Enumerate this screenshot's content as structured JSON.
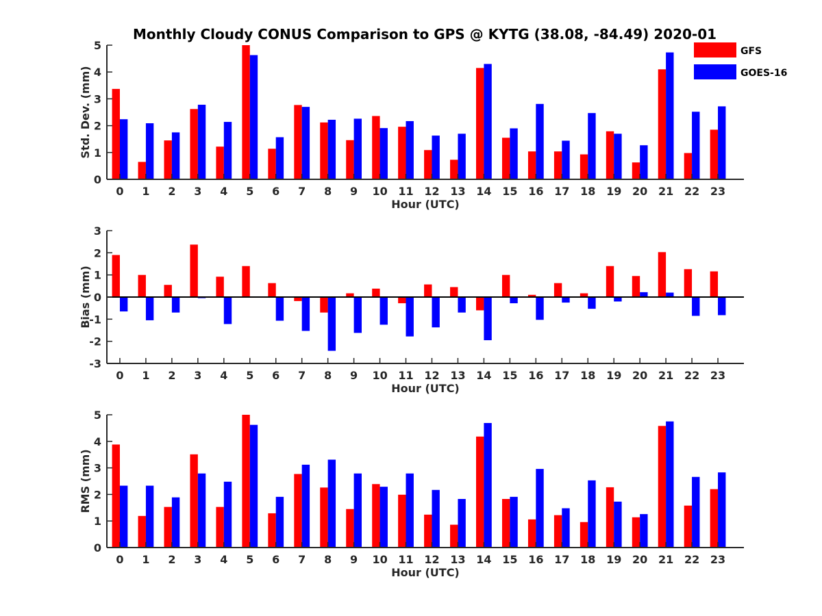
{
  "chart_data": {
    "title": "Monthly Cloudy CONUS Comparison to GPS @ KYTG (38.08, -84.49) 2020-01",
    "legend": [
      {
        "name": "GFS",
        "color": "#ff0000"
      },
      {
        "name": "GOES-16",
        "color": "#0000ff"
      }
    ],
    "legend_position": "top-right",
    "panels": [
      {
        "type": "bar",
        "ylabel": "Std. Dev. (mm)",
        "xlabel": "Hour (UTC)",
        "ylim": [
          0,
          5
        ],
        "yticks": [
          0,
          1,
          2,
          3,
          4,
          5
        ],
        "categories": [
          "0",
          "1",
          "2",
          "3",
          "4",
          "5",
          "6",
          "7",
          "8",
          "9",
          "10",
          "11",
          "12",
          "13",
          "14",
          "15",
          "16",
          "17",
          "18",
          "19",
          "20",
          "21",
          "22",
          "23"
        ],
        "series": [
          {
            "name": "GFS",
            "color": "#ff0000",
            "values": [
              3.37,
              0.65,
              1.45,
              2.62,
              1.22,
              5.0,
              1.14,
              2.77,
              2.12,
              1.46,
              2.36,
              1.96,
              1.09,
              0.73,
              4.15,
              1.55,
              1.04,
              1.04,
              0.93,
              1.79,
              0.63,
              4.1,
              0.98,
              1.85
            ]
          },
          {
            "name": "GOES-16",
            "color": "#0000ff",
            "values": [
              2.24,
              2.09,
              1.75,
              2.78,
              2.14,
              4.63,
              1.57,
              2.7,
              2.22,
              2.26,
              1.91,
              2.17,
              1.63,
              1.7,
              4.3,
              1.9,
              2.81,
              1.44,
              2.47,
              1.7,
              1.27,
              4.73,
              2.52,
              2.72
            ]
          }
        ]
      },
      {
        "type": "bar",
        "ylabel": "Bias (mm)",
        "xlabel": "Hour (UTC)",
        "ylim": [
          -3,
          3
        ],
        "yticks": [
          -3,
          -2,
          -1,
          0,
          1,
          2,
          3
        ],
        "zero_line": true,
        "categories": [
          "0",
          "1",
          "2",
          "3",
          "4",
          "5",
          "6",
          "7",
          "8",
          "9",
          "10",
          "11",
          "12",
          "13",
          "14",
          "15",
          "16",
          "17",
          "18",
          "19",
          "20",
          "21",
          "22",
          "23"
        ],
        "series": [
          {
            "name": "GFS",
            "color": "#ff0000",
            "values": [
              1.9,
              1.0,
              0.55,
              2.37,
              0.92,
              1.4,
              0.63,
              -0.18,
              -0.7,
              0.17,
              0.38,
              -0.28,
              0.57,
              0.45,
              -0.6,
              1.0,
              0.1,
              0.63,
              0.17,
              1.4,
              0.95,
              2.03,
              1.26,
              1.16
            ]
          },
          {
            "name": "GOES-16",
            "color": "#0000ff",
            "values": [
              -0.65,
              -1.05,
              -0.7,
              -0.05,
              -1.22,
              0,
              -1.07,
              -1.53,
              -2.43,
              -1.62,
              -1.25,
              -1.78,
              -1.37,
              -0.7,
              -1.95,
              -0.28,
              -1.03,
              -0.25,
              -0.53,
              -0.2,
              0.22,
              0.2,
              -0.85,
              -0.82
            ]
          }
        ]
      },
      {
        "type": "bar",
        "ylabel": "RMS (mm)",
        "xlabel": "Hour (UTC)",
        "ylim": [
          0,
          5
        ],
        "yticks": [
          0,
          1,
          2,
          3,
          4,
          5
        ],
        "categories": [
          "0",
          "1",
          "2",
          "3",
          "4",
          "5",
          "6",
          "7",
          "8",
          "9",
          "10",
          "11",
          "12",
          "13",
          "14",
          "15",
          "16",
          "17",
          "18",
          "19",
          "20",
          "21",
          "22",
          "23"
        ],
        "series": [
          {
            "name": "GFS",
            "color": "#ff0000",
            "values": [
              3.88,
              1.19,
              1.53,
              3.51,
              1.53,
              5.0,
              1.29,
              2.77,
              2.26,
              1.45,
              2.39,
              1.99,
              1.24,
              0.86,
              4.18,
              1.83,
              1.06,
              1.22,
              0.96,
              2.27,
              1.14,
              4.58,
              1.58,
              2.2
            ]
          },
          {
            "name": "GOES-16",
            "color": "#0000ff",
            "values": [
              2.33,
              2.33,
              1.89,
              2.79,
              2.48,
              4.62,
              1.91,
              3.12,
              3.31,
              2.79,
              2.29,
              2.79,
              2.17,
              1.83,
              4.69,
              1.91,
              2.96,
              1.48,
              2.53,
              1.73,
              1.26,
              4.75,
              2.66,
              2.83
            ]
          }
        ]
      }
    ]
  }
}
